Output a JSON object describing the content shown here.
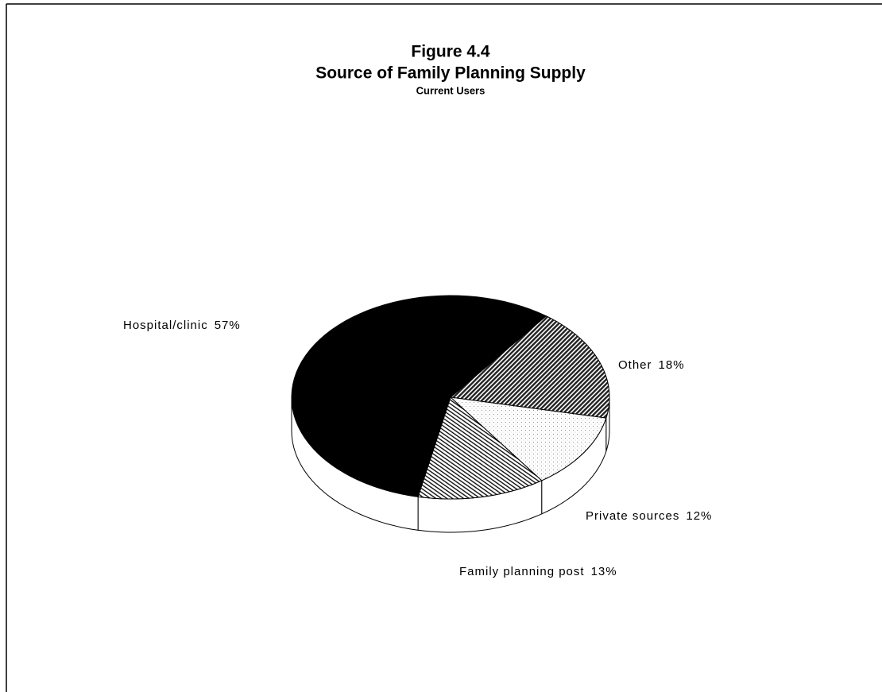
{
  "chart_data": {
    "type": "pie",
    "title": "Figure 4.4",
    "subtitle": "Source of Family Planning Supply",
    "caption": "Current Users",
    "categories": [
      "Other",
      "Private sources",
      "Family planning post",
      "Hospital/clinic"
    ],
    "values": [
      18,
      12,
      13,
      57
    ],
    "value_labels": [
      "18%",
      "12%",
      "13%",
      "57%"
    ],
    "fills": [
      "dense-hatch",
      "dots",
      "hatch",
      "solid"
    ]
  }
}
